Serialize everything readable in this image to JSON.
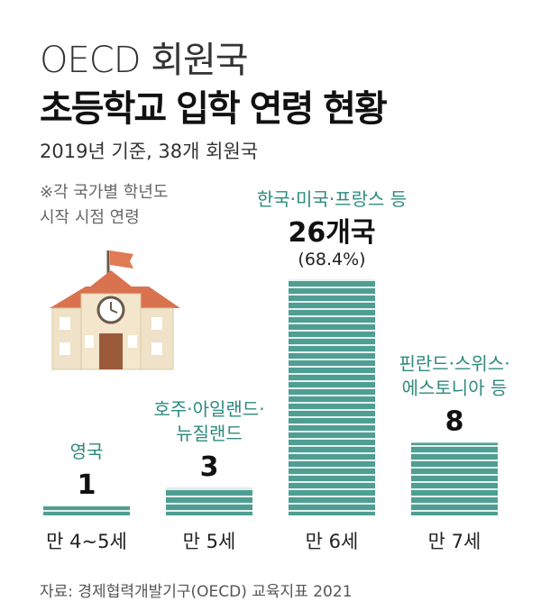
{
  "header": {
    "title_line1": "OECD 회원국",
    "title_line2": "초등학교 입학 연령 현황",
    "subtitle": "2019년 기준, 38개 회원국",
    "note_line1": "※각 국가별 학년도",
    "note_line2": "시작 시점 연령"
  },
  "chart_data": {
    "type": "bar",
    "categories": [
      "만 4~5세",
      "만 5세",
      "만 6세",
      "만 7세"
    ],
    "values": [
      1,
      3,
      26,
      8
    ],
    "value_labels": [
      "1",
      "3",
      "26개국",
      "8"
    ],
    "percent_labels": [
      "",
      "",
      "(68.4%)",
      ""
    ],
    "country_labels": [
      [
        "영국"
      ],
      [
        "호주·아일랜드·",
        "뉴질랜드"
      ],
      [
        "한국·미국·프랑스 등"
      ],
      [
        "핀란드·스위스·",
        "에스토니아 등"
      ]
    ],
    "bar_color": "#4f9e93",
    "stripe_color": "#ffffff",
    "label_color": "#2e8a7e"
  },
  "footer": {
    "source": "자료: 경제협력개발기구(OECD) 교육지표 2021"
  }
}
